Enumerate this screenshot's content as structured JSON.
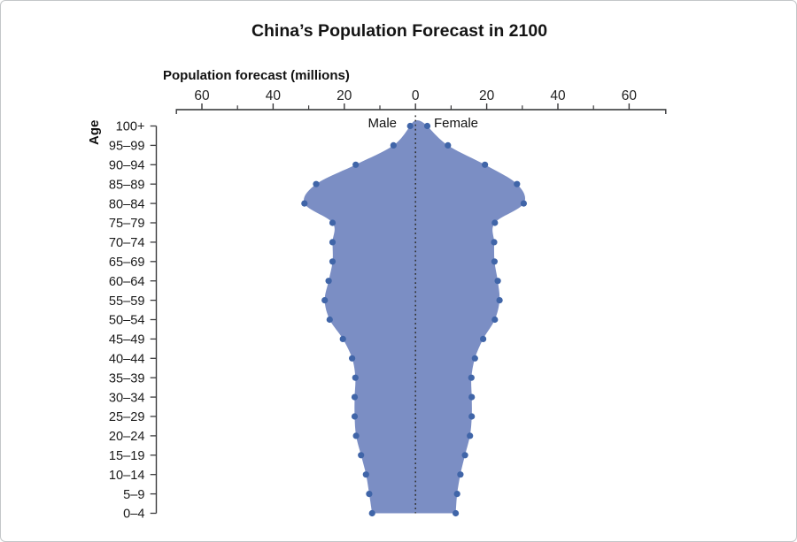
{
  "page": {
    "title": "China’s Population Forecast in 2100"
  },
  "chart": {
    "x_axis_title": "Population forecast (millions)",
    "y_axis_title": "Age",
    "left_label": "Male",
    "right_label": "Female"
  },
  "chart_data": {
    "type": "area",
    "subtype": "population-pyramid",
    "title": "China’s Population Forecast in 2100",
    "xlabel": "Population forecast (millions)",
    "ylabel": "Age",
    "xlim": [
      -70,
      70
    ],
    "x_ticks": {
      "major": [
        -60,
        -40,
        -20,
        0,
        20,
        40,
        60
      ],
      "minor": [
        -50,
        -30,
        -10,
        10,
        30,
        50
      ]
    },
    "categories": [
      "100+",
      "95–99",
      "90–94",
      "85–89",
      "80–84",
      "75–79",
      "70–74",
      "65–69",
      "60–64",
      "55–59",
      "50–54",
      "45–49",
      "40–44",
      "35–39",
      "30–34",
      "25–29",
      "20–24",
      "15–19",
      "10–14",
      "5–9",
      "0–4"
    ],
    "series": [
      {
        "name": "Male",
        "side": "left",
        "values": [
          1.5,
          6.2,
          16.8,
          27.9,
          31.2,
          23.3,
          23.3,
          23.3,
          24.4,
          25.5,
          24.1,
          20.4,
          17.8,
          16.9,
          17.1,
          17.1,
          16.7,
          15.3,
          13.9,
          13.0,
          12.2
        ]
      },
      {
        "name": "Female",
        "side": "right",
        "values": [
          3.3,
          9.1,
          19.5,
          28.5,
          30.4,
          22.3,
          22.1,
          22.2,
          23.1,
          23.6,
          22.3,
          19.0,
          16.7,
          15.7,
          15.8,
          15.8,
          15.3,
          13.9,
          12.6,
          11.7,
          11.3
        ]
      }
    ],
    "legend_position": "top-center-inline",
    "grid": false,
    "colors": {
      "area": "#7b8ec4",
      "point": "#4065a8",
      "axis": "#4a4b4d",
      "tick": "#3a3a3c",
      "center_line": "#333333"
    }
  }
}
